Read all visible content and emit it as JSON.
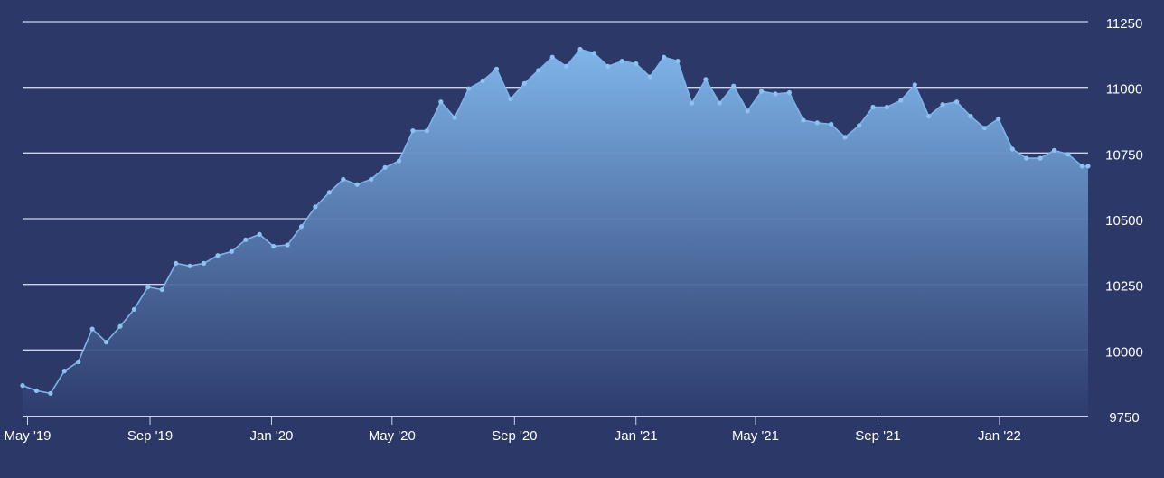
{
  "chart_data": {
    "type": "area",
    "title": "",
    "xlabel": "",
    "ylabel": "",
    "x_ticks": [
      "May '19",
      "Sep '19",
      "Jan '20",
      "May '20",
      "Sep '20",
      "Jan '21",
      "May '21",
      "Sep '21",
      "Jan '22"
    ],
    "y_ticks": [
      9750,
      10000,
      10250,
      10500,
      10750,
      11000,
      11250
    ],
    "ylim": [
      9750,
      11250
    ],
    "xlim": [
      "2019-04-26",
      "2022-03-31"
    ],
    "grid": true,
    "axis_side": "right",
    "series": [
      {
        "points": [
          [
            "2019-04-26",
            9865
          ],
          [
            "2019-05-10",
            9845
          ],
          [
            "2019-05-24",
            9835
          ],
          [
            "2019-06-07",
            9920
          ],
          [
            "2019-06-21",
            9955
          ],
          [
            "2019-07-05",
            10080
          ],
          [
            "2019-07-19",
            10030
          ],
          [
            "2019-08-02",
            10090
          ],
          [
            "2019-08-16",
            10155
          ],
          [
            "2019-08-30",
            10240
          ],
          [
            "2019-09-13",
            10230
          ],
          [
            "2019-09-27",
            10330
          ],
          [
            "2019-10-11",
            10320
          ],
          [
            "2019-10-25",
            10330
          ],
          [
            "2019-11-08",
            10360
          ],
          [
            "2019-11-22",
            10375
          ],
          [
            "2019-12-06",
            10420
          ],
          [
            "2019-12-20",
            10440
          ],
          [
            "2020-01-03",
            10395
          ],
          [
            "2020-01-17",
            10400
          ],
          [
            "2020-01-31",
            10470
          ],
          [
            "2020-02-14",
            10545
          ],
          [
            "2020-02-28",
            10600
          ],
          [
            "2020-03-13",
            10650
          ],
          [
            "2020-03-27",
            10630
          ],
          [
            "2020-04-10",
            10650
          ],
          [
            "2020-04-24",
            10695
          ],
          [
            "2020-05-08",
            10720
          ],
          [
            "2020-05-22",
            10835
          ],
          [
            "2020-06-05",
            10835
          ],
          [
            "2020-06-19",
            10945
          ],
          [
            "2020-07-03",
            10885
          ],
          [
            "2020-07-17",
            10995
          ],
          [
            "2020-07-31",
            11025
          ],
          [
            "2020-08-14",
            11070
          ],
          [
            "2020-08-28",
            10955
          ],
          [
            "2020-09-11",
            11015
          ],
          [
            "2020-09-25",
            11065
          ],
          [
            "2020-10-09",
            11115
          ],
          [
            "2020-10-23",
            11080
          ],
          [
            "2020-11-06",
            11145
          ],
          [
            "2020-11-20",
            11130
          ],
          [
            "2020-12-04",
            11080
          ],
          [
            "2020-12-18",
            11100
          ],
          [
            "2021-01-01",
            11090
          ],
          [
            "2021-01-15",
            11040
          ],
          [
            "2021-01-29",
            11115
          ],
          [
            "2021-02-12",
            11100
          ],
          [
            "2021-02-26",
            10940
          ],
          [
            "2021-03-12",
            11030
          ],
          [
            "2021-03-26",
            10940
          ],
          [
            "2021-04-09",
            11005
          ],
          [
            "2021-04-23",
            10910
          ],
          [
            "2021-05-07",
            10985
          ],
          [
            "2021-05-21",
            10975
          ],
          [
            "2021-06-04",
            10980
          ],
          [
            "2021-06-18",
            10875
          ],
          [
            "2021-07-02",
            10865
          ],
          [
            "2021-07-16",
            10860
          ],
          [
            "2021-07-30",
            10810
          ],
          [
            "2021-08-13",
            10855
          ],
          [
            "2021-08-27",
            10925
          ],
          [
            "2021-09-10",
            10925
          ],
          [
            "2021-09-24",
            10950
          ],
          [
            "2021-10-08",
            11010
          ],
          [
            "2021-10-22",
            10890
          ],
          [
            "2021-11-05",
            10935
          ],
          [
            "2021-11-19",
            10945
          ],
          [
            "2021-12-03",
            10890
          ],
          [
            "2021-12-17",
            10845
          ],
          [
            "2021-12-31",
            10880
          ],
          [
            "2022-01-14",
            10765
          ],
          [
            "2022-01-28",
            10730
          ],
          [
            "2022-02-11",
            10730
          ],
          [
            "2022-02-25",
            10760
          ],
          [
            "2022-03-11",
            10745
          ],
          [
            "2022-03-25",
            10700
          ],
          [
            "2022-03-31",
            10700
          ]
        ]
      }
    ],
    "colors": {
      "background": "#2b3868",
      "grid": "#ccd4ec",
      "line": "#7db4e6",
      "marker": "#8cc2f0",
      "area_top": "#7fb5ea",
      "area_bottom": "#2e3c6e",
      "axis_text": "#ffffff"
    }
  }
}
